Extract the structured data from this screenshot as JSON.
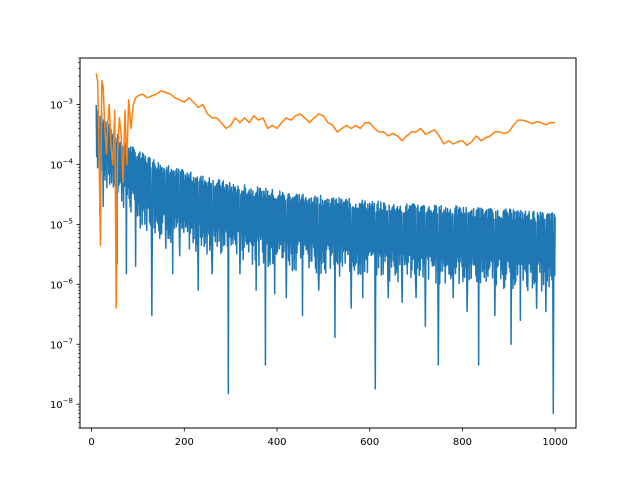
{
  "chart_data": {
    "type": "line",
    "xscale": "linear",
    "yscale": "log",
    "xlim": [
      -25,
      1045
    ],
    "ylim": [
      4e-09,
      0.006
    ],
    "grid": false,
    "x_ticks": [
      0,
      200,
      400,
      600,
      800,
      1000
    ],
    "x_tick_labels": [
      "0",
      "200",
      "400",
      "600",
      "800",
      "1000"
    ],
    "y_ticks": [
      1e-08,
      1e-07,
      1e-06,
      1e-05,
      0.0001,
      0.001
    ],
    "y_tick_labels": [
      {
        "base": "10",
        "exp": "−8"
      },
      {
        "base": "10",
        "exp": "−7"
      },
      {
        "base": "10",
        "exp": "−6"
      },
      {
        "base": "10",
        "exp": "−5"
      },
      {
        "base": "10",
        "exp": "−4"
      },
      {
        "base": "10",
        "exp": "−3"
      }
    ],
    "series": [
      {
        "color": "#1f77b4",
        "description": "rapidly oscillating series; upper envelope and sparse deep minima",
        "upper_envelope": {
          "x": [
            10,
            20,
            40,
            60,
            80,
            100,
            150,
            200,
            300,
            400,
            500,
            600,
            700,
            800,
            900,
            1000
          ],
          "y": [
            0.0012,
            0.0008,
            0.00045,
            0.0003,
            0.00023,
            0.00017,
            0.00011,
            8e-05,
            5e-05,
            3.8e-05,
            3e-05,
            2.5e-05,
            2.2e-05,
            2e-05,
            1.8e-05,
            1.6e-05
          ]
        },
        "typical_lower": {
          "x": [
            10,
            100,
            200,
            400,
            600,
            800,
            1000
          ],
          "y": [
            0.0001,
            1.5e-05,
            6e-06,
            3e-06,
            2e-06,
            1.5e-06,
            1.2e-06
          ]
        },
        "minima": {
          "x": [
            18,
            25,
            55,
            75,
            95,
            130,
            160,
            175,
            190,
            230,
            260,
            295,
            320,
            355,
            375,
            395,
            420,
            455,
            490,
            525,
            560,
            585,
            612,
            640,
            670,
            700,
            720,
            748,
            780,
            810,
            835,
            870,
            905,
            925,
            960,
            980,
            996
          ],
          "y": [
            1.5e-05,
            2e-05,
            2.2e-06,
            1.5e-06,
            2e-06,
            3e-07,
            4e-06,
            1.5e-06,
            3e-06,
            8e-07,
            1.5e-06,
            1.5e-08,
            1.5e-06,
            8e-07,
            4.5e-08,
            7e-07,
            6e-07,
            3e-07,
            8e-07,
            1.3e-07,
            4e-07,
            6e-07,
            1.8e-08,
            6e-07,
            5e-07,
            6e-07,
            2e-07,
            4.5e-08,
            6e-07,
            3.5e-07,
            4.5e-08,
            3e-07,
            1e-07,
            2.5e-07,
            4e-07,
            3.5e-07,
            7e-09
          ]
        }
      },
      {
        "color": "#ff7f0e",
        "x": [
          10,
          13,
          16,
          19,
          22,
          25,
          28,
          32,
          35,
          38,
          42,
          46,
          50,
          53,
          56,
          60,
          64,
          68,
          72,
          76,
          80,
          85,
          90,
          95,
          100,
          110,
          120,
          130,
          140,
          150,
          160,
          170,
          180,
          190,
          200,
          210,
          220,
          230,
          240,
          250,
          260,
          270,
          280,
          290,
          300,
          310,
          320,
          330,
          340,
          350,
          360,
          370,
          380,
          390,
          400,
          410,
          420,
          430,
          440,
          450,
          460,
          470,
          480,
          490,
          500,
          510,
          520,
          530,
          540,
          550,
          560,
          570,
          580,
          590,
          600,
          610,
          620,
          630,
          640,
          650,
          660,
          670,
          680,
          690,
          700,
          710,
          720,
          730,
          740,
          750,
          760,
          770,
          780,
          790,
          800,
          810,
          820,
          830,
          840,
          850,
          860,
          870,
          880,
          890,
          900,
          910,
          920,
          930,
          940,
          950,
          960,
          970,
          980,
          990,
          1000
        ],
        "y": [
          0.0033,
          0.0025,
          0.0002,
          4.5e-06,
          0.0025,
          0.002,
          0.0005,
          0.00015,
          0.0005,
          0.001,
          0.0002,
          0.0001,
          0.0008,
          4e-07,
          0.00015,
          0.0006,
          0.0003,
          5e-05,
          0.0008,
          0.0001,
          0.0012,
          0.0004,
          0.001,
          0.0013,
          0.0014,
          0.0015,
          0.0013,
          0.0014,
          0.0015,
          0.0017,
          0.0016,
          0.0015,
          0.0013,
          0.0012,
          0.0011,
          0.0013,
          0.0011,
          0.0009,
          0.001,
          0.0007,
          0.0006,
          0.0006,
          0.0005,
          0.0004,
          0.00045,
          0.0006,
          0.0005,
          0.0006,
          0.0005,
          0.00065,
          0.00055,
          0.0006,
          0.0004,
          0.00045,
          0.0004,
          0.0005,
          0.0006,
          0.00055,
          0.00065,
          0.0007,
          0.0006,
          0.0005,
          0.0006,
          0.0007,
          0.00065,
          0.0005,
          0.00045,
          0.00035,
          0.0004,
          0.00045,
          0.0004,
          0.00045,
          0.0004,
          0.0005,
          0.0005,
          0.0004,
          0.00035,
          0.00035,
          0.0003,
          0.00033,
          0.0003,
          0.00025,
          0.0003,
          0.00035,
          0.00035,
          0.0004,
          0.00032,
          0.00035,
          0.00038,
          0.0003,
          0.00022,
          0.00025,
          0.00022,
          0.00024,
          0.00025,
          0.00021,
          0.00024,
          0.0003,
          0.00025,
          0.00028,
          0.0003,
          0.00035,
          0.00035,
          0.00033,
          0.00035,
          0.00045,
          0.00055,
          0.00055,
          0.00052,
          0.00048,
          0.00052,
          0.0005,
          0.00046,
          0.0005,
          0.0005
        ]
      }
    ]
  }
}
